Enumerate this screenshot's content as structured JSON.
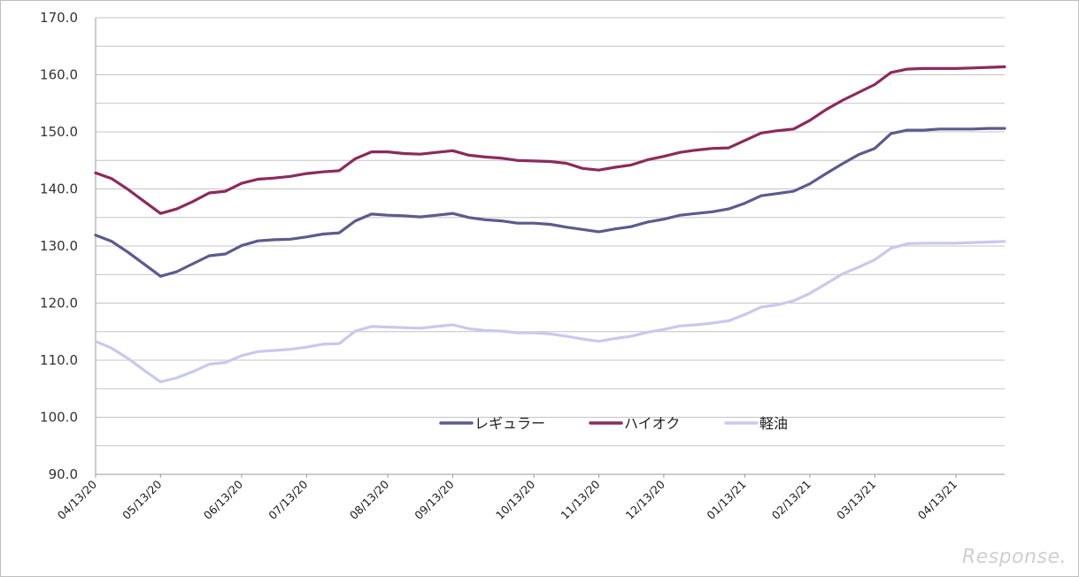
{
  "chart_data": {
    "type": "line",
    "ylim": [
      90,
      170
    ],
    "yticks": [
      "90.0",
      "100.0",
      "110.0",
      "120.0",
      "130.0",
      "140.0",
      "150.0",
      "160.0",
      "170.0"
    ],
    "xtick_labels": [
      "04/13/20",
      "05/13/20",
      "06/13/20",
      "07/13/20",
      "08/13/20",
      "09/13/20",
      "10/13/20",
      "11/13/20",
      "12/13/20",
      "01/13/21",
      "02/13/21",
      "03/13/21",
      "04/13/21"
    ],
    "xtick_week_index": [
      0,
      4,
      9,
      13,
      18,
      22,
      27,
      31,
      35,
      40,
      44,
      48,
      53
    ],
    "weeks": 57,
    "grid": true,
    "legend_position": "center",
    "series": [
      {
        "name": "レギュラー",
        "color": "#5b5b8f",
        "values": [
          131.9,
          130.8,
          128.9,
          126.8,
          124.7,
          125.5,
          126.9,
          128.3,
          128.6,
          130.1,
          130.9,
          131.1,
          131.2,
          131.6,
          132.1,
          132.3,
          134.4,
          135.6,
          135.4,
          135.3,
          135.1,
          135.4,
          135.7,
          135.0,
          134.6,
          134.4,
          134.0,
          134.0,
          133.8,
          133.3,
          132.9,
          132.5,
          133.0,
          133.4,
          134.2,
          134.7,
          135.4,
          135.7,
          136.0,
          136.5,
          137.5,
          138.8,
          139.2,
          139.6,
          140.9,
          142.7,
          144.4,
          146.0,
          147.1,
          149.7,
          150.3,
          150.3,
          150.5,
          150.5,
          150.5,
          150.6,
          150.6
        ]
      },
      {
        "name": "ハイオク",
        "color": "#8b2a5d",
        "values": [
          142.8,
          141.8,
          139.9,
          137.8,
          135.7,
          136.5,
          137.8,
          139.3,
          139.6,
          141.0,
          141.7,
          141.9,
          142.2,
          142.7,
          143.0,
          143.2,
          145.3,
          146.5,
          146.5,
          146.2,
          146.1,
          146.4,
          146.7,
          145.9,
          145.6,
          145.4,
          145.0,
          144.9,
          144.8,
          144.5,
          143.6,
          143.3,
          143.8,
          144.2,
          145.1,
          145.7,
          146.4,
          146.8,
          147.1,
          147.2,
          148.5,
          149.8,
          150.2,
          150.5,
          152.0,
          153.9,
          155.5,
          156.9,
          158.3,
          160.4,
          161.0,
          161.1,
          161.1,
          161.1,
          161.2,
          161.3,
          161.4
        ]
      },
      {
        "name": "軽油",
        "color": "#c9c9ee",
        "values": [
          113.3,
          112.1,
          110.3,
          108.2,
          106.2,
          106.9,
          108.0,
          109.3,
          109.6,
          110.8,
          111.5,
          111.7,
          111.9,
          112.3,
          112.8,
          112.9,
          115.1,
          115.9,
          115.8,
          115.7,
          115.6,
          115.9,
          116.2,
          115.5,
          115.2,
          115.1,
          114.8,
          114.8,
          114.6,
          114.2,
          113.7,
          113.3,
          113.8,
          114.2,
          114.9,
          115.4,
          116.0,
          116.2,
          116.5,
          116.9,
          118.0,
          119.3,
          119.7,
          120.4,
          121.7,
          123.4,
          125.1,
          126.3,
          127.6,
          129.6,
          130.4,
          130.5,
          130.5,
          130.5,
          130.6,
          130.7,
          130.8
        ]
      }
    ]
  },
  "watermark": "Response."
}
